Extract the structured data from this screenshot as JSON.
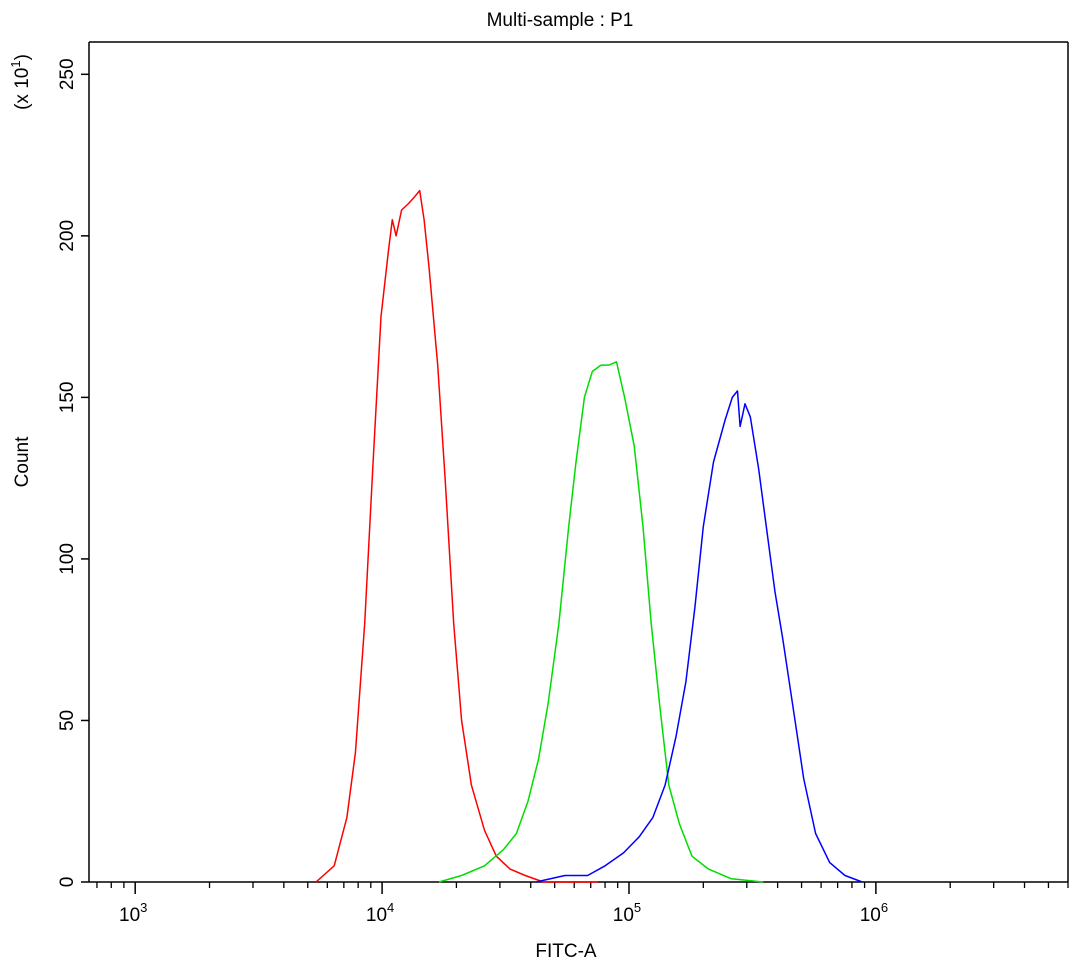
{
  "chart_data": {
    "type": "line",
    "title": "Multi-sample : P1",
    "xlabel": "FITC-A",
    "ylabel": "Count",
    "y_multiplier_label": "(x 10^1)",
    "x_scale": "log",
    "xlim": [
      650,
      6000000
    ],
    "ylim": [
      0,
      260
    ],
    "grid": false,
    "x_ticks": [
      {
        "value": 1000,
        "base": "10",
        "exp": "3"
      },
      {
        "value": 10000,
        "base": "10",
        "exp": "4"
      },
      {
        "value": 100000,
        "base": "10",
        "exp": "5"
      },
      {
        "value": 1000000,
        "base": "10",
        "exp": "6"
      }
    ],
    "y_ticks": [
      0,
      50,
      100,
      150,
      200,
      250
    ],
    "series": [
      {
        "color": "#ff0000",
        "points": [
          [
            5400,
            0
          ],
          [
            6400,
            5
          ],
          [
            7200,
            20
          ],
          [
            7800,
            40
          ],
          [
            8500,
            80
          ],
          [
            9200,
            130
          ],
          [
            9900,
            175
          ],
          [
            10600,
            195
          ],
          [
            11000,
            205
          ],
          [
            11400,
            200
          ],
          [
            12000,
            208
          ],
          [
            12800,
            210
          ],
          [
            13500,
            212
          ],
          [
            14200,
            214
          ],
          [
            14800,
            205
          ],
          [
            15500,
            190
          ],
          [
            16800,
            160
          ],
          [
            18000,
            125
          ],
          [
            19500,
            80
          ],
          [
            21000,
            50
          ],
          [
            23000,
            30
          ],
          [
            26000,
            16
          ],
          [
            29000,
            8
          ],
          [
            33000,
            4
          ],
          [
            38000,
            2
          ],
          [
            45000,
            0
          ],
          [
            60000,
            0
          ],
          [
            75000,
            0
          ]
        ]
      },
      {
        "color": "#00dd00",
        "points": [
          [
            17000,
            0
          ],
          [
            21000,
            2
          ],
          [
            26000,
            5
          ],
          [
            31000,
            10
          ],
          [
            35000,
            15
          ],
          [
            39000,
            25
          ],
          [
            43000,
            38
          ],
          [
            47000,
            55
          ],
          [
            52000,
            80
          ],
          [
            57000,
            110
          ],
          [
            61000,
            130
          ],
          [
            66000,
            150
          ],
          [
            71000,
            158
          ],
          [
            77000,
            160
          ],
          [
            83000,
            160
          ],
          [
            89000,
            161
          ],
          [
            96000,
            150
          ],
          [
            105000,
            135
          ],
          [
            114000,
            110
          ],
          [
            123000,
            80
          ],
          [
            133000,
            55
          ],
          [
            145000,
            30
          ],
          [
            160000,
            18
          ],
          [
            180000,
            8
          ],
          [
            210000,
            4
          ],
          [
            260000,
            1
          ],
          [
            350000,
            0
          ]
        ]
      },
      {
        "color": "#0000ff",
        "points": [
          [
            42000,
            0
          ],
          [
            55000,
            2
          ],
          [
            68000,
            2
          ],
          [
            80000,
            5
          ],
          [
            95000,
            9
          ],
          [
            110000,
            14
          ],
          [
            125000,
            20
          ],
          [
            140000,
            30
          ],
          [
            155000,
            45
          ],
          [
            170000,
            62
          ],
          [
            185000,
            85
          ],
          [
            200000,
            110
          ],
          [
            220000,
            130
          ],
          [
            245000,
            143
          ],
          [
            262000,
            150
          ],
          [
            275000,
            152
          ],
          [
            282000,
            141
          ],
          [
            295000,
            148
          ],
          [
            310000,
            144
          ],
          [
            335000,
            128
          ],
          [
            360000,
            110
          ],
          [
            390000,
            90
          ],
          [
            420000,
            75
          ],
          [
            460000,
            55
          ],
          [
            510000,
            32
          ],
          [
            570000,
            15
          ],
          [
            650000,
            6
          ],
          [
            750000,
            2
          ],
          [
            880000,
            0
          ]
        ]
      }
    ]
  }
}
